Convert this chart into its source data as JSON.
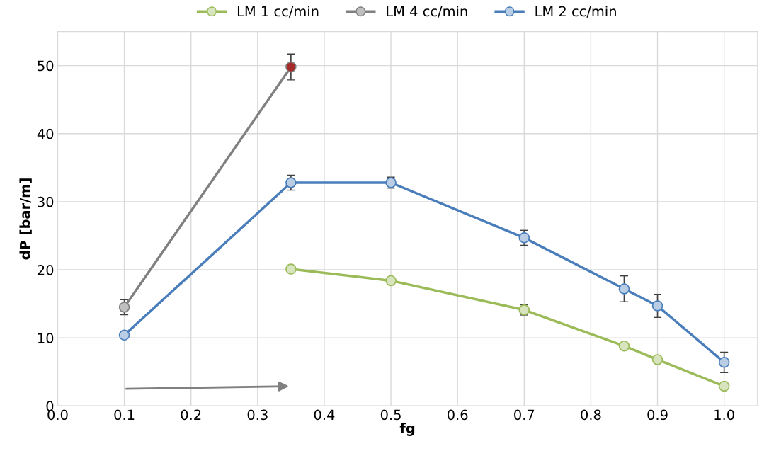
{
  "chart_data": {
    "type": "line",
    "xlabel": "fg",
    "ylabel": "dP [bar/m]",
    "xlim": [
      0.0,
      1.05
    ],
    "xticks": [
      {
        "value": 0.0,
        "label": "0.0"
      },
      {
        "value": 0.1,
        "label": "0.1"
      },
      {
        "value": 0.2,
        "label": "0.2"
      },
      {
        "value": 0.3,
        "label": "0.3"
      },
      {
        "value": 0.4,
        "label": "0.4"
      },
      {
        "value": 0.5,
        "label": "0.5"
      },
      {
        "value": 0.6,
        "label": "0.6"
      },
      {
        "value": 0.7,
        "label": "0.7"
      },
      {
        "value": 0.8,
        "label": "0.8"
      },
      {
        "value": 0.9,
        "label": "0.9"
      },
      {
        "value": 1.0,
        "label": "1.0"
      }
    ],
    "ylim": [
      0,
      55
    ],
    "yticks": [
      0,
      10,
      20,
      30,
      40,
      50
    ],
    "grid": true,
    "legend": "top",
    "marker": "circle",
    "line_style": "solid",
    "series": [
      {
        "name": "LM 1 cc/min",
        "color": "#9bbb59",
        "colors": [
          "#d7e4bd",
          "#d7e4bd",
          "#d7e4bd",
          "#d7e4bd",
          "#d7e4bd",
          "#d7e4bd"
        ],
        "x": [
          0.35,
          0.5,
          0.7,
          0.85,
          0.9,
          1.0
        ],
        "values": [
          20.1,
          18.4,
          14.1,
          8.8,
          6.8,
          2.9
        ],
        "errors": [
          null,
          null,
          0.75,
          null,
          null,
          null
        ]
      },
      {
        "name": "LM 4 cc/min",
        "color": "#808080",
        "colors": [
          "#bfbfbf",
          "#a52a2a"
        ],
        "x": [
          0.1,
          0.35
        ],
        "values": [
          14.5,
          49.8
        ],
        "errors": [
          1.1,
          1.9
        ]
      },
      {
        "name": "LM 2 cc/min",
        "color": "#4a7ebb",
        "colors": [
          "#b9cde5",
          "#b9cde5",
          "#b9cde5",
          "#b9cde5",
          "#b9cde5",
          "#b9cde5",
          "#b9cde5"
        ],
        "x": [
          0.1,
          0.35,
          0.5,
          0.7,
          0.85,
          0.9,
          1.0
        ],
        "values": [
          10.4,
          32.8,
          32.8,
          24.7,
          17.2,
          14.7,
          6.4
        ],
        "errors": [
          null,
          1.1,
          0.8,
          1.1,
          1.9,
          1.7,
          1.5
        ]
      }
    ]
  }
}
